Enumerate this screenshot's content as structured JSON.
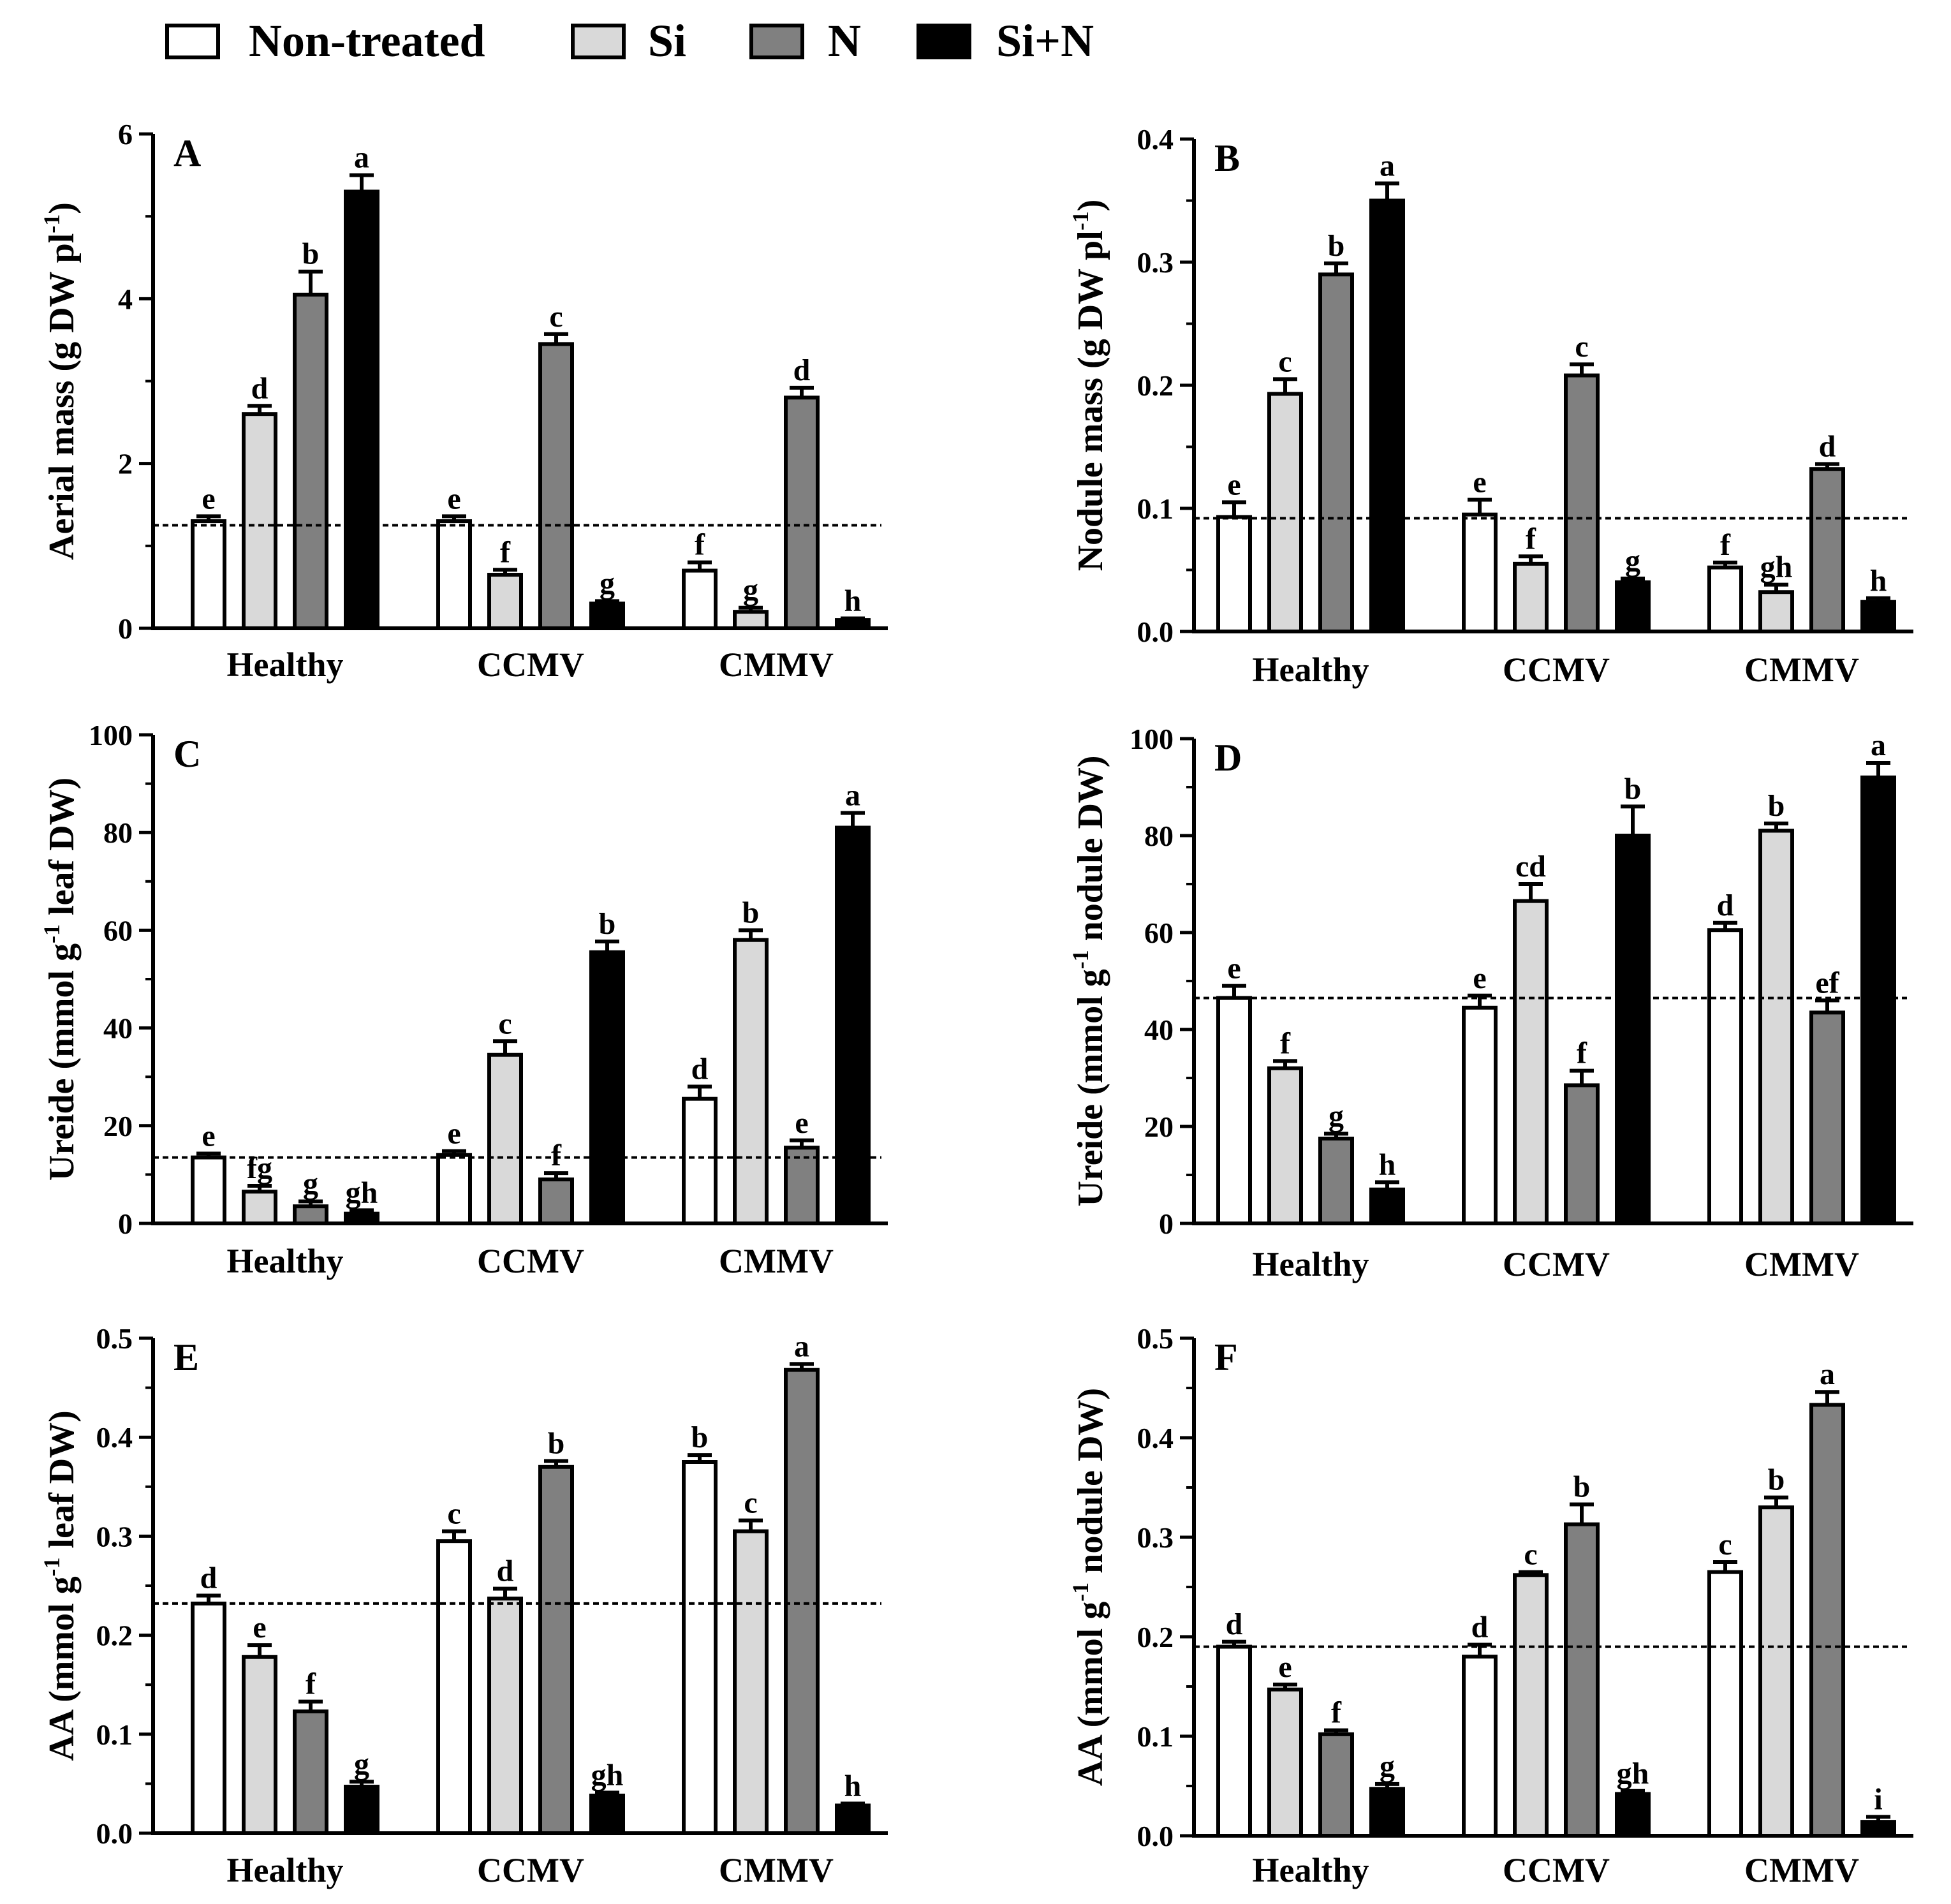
{
  "legend": {
    "items": [
      {
        "label": "Non-treated",
        "color": "#ffffff"
      },
      {
        "label": "Si",
        "color": "#d9d9d9"
      },
      {
        "label": "N",
        "color": "#808080"
      },
      {
        "label": "Si+N",
        "color": "#000000"
      }
    ]
  },
  "chart_data": [
    {
      "type": "bar",
      "panel": "A",
      "ylabel": "Aerial mass (g DW pl-1)",
      "ylabel_parts": [
        "Aerial mass (g DW pl",
        "-1",
        ")"
      ],
      "ylim": [
        0,
        6
      ],
      "yticks": [
        0,
        2,
        4,
        6
      ],
      "ytick_labels": [
        "0",
        "2",
        "4",
        "6"
      ],
      "categories": [
        "Healthy",
        "CCMV",
        "CMMV"
      ],
      "reference_line": 1.25,
      "series": [
        {
          "name": "Non-treated",
          "values": [
            1.3,
            1.3,
            0.7
          ],
          "errors": [
            0.06,
            0.06,
            0.1
          ],
          "letters": [
            "e",
            "e",
            "f"
          ]
        },
        {
          "name": "Si",
          "values": [
            2.6,
            0.65,
            0.2
          ],
          "errors": [
            0.1,
            0.06,
            0.05
          ],
          "letters": [
            "d",
            "f",
            "g"
          ]
        },
        {
          "name": "N",
          "values": [
            4.05,
            3.45,
            2.8
          ],
          "errors": [
            0.28,
            0.12,
            0.12
          ],
          "letters": [
            "b",
            "c",
            "d"
          ]
        },
        {
          "name": "Si+N",
          "values": [
            5.3,
            0.3,
            0.1
          ],
          "errors": [
            0.2,
            0.03,
            0.02
          ],
          "letters": [
            "a",
            "g",
            "h"
          ]
        }
      ]
    },
    {
      "type": "bar",
      "panel": "B",
      "ylabel": "Nodule mass (g DW pl-1)",
      "ylabel_parts": [
        "Nodule mass (g DW pl",
        "-1",
        ")"
      ],
      "ylim": [
        0,
        0.4
      ],
      "yticks": [
        0,
        0.1,
        0.2,
        0.3,
        0.4
      ],
      "ytick_labels": [
        "0.0",
        "0.1",
        "0.2",
        "0.3",
        "0.4"
      ],
      "categories": [
        "Healthy",
        "CCMV",
        "CMMV"
      ],
      "reference_line": 0.092,
      "series": [
        {
          "name": "Non-treated",
          "values": [
            0.093,
            0.095,
            0.052
          ],
          "errors": [
            0.012,
            0.012,
            0.004
          ],
          "letters": [
            "e",
            "e",
            "f"
          ]
        },
        {
          "name": "Si",
          "values": [
            0.193,
            0.055,
            0.032
          ],
          "errors": [
            0.012,
            0.006,
            0.006
          ],
          "letters": [
            "c",
            "f",
            "gh"
          ]
        },
        {
          "name": "N",
          "values": [
            0.29,
            0.208,
            0.132
          ],
          "errors": [
            0.009,
            0.009,
            0.004
          ],
          "letters": [
            "b",
            "c",
            "d"
          ]
        },
        {
          "name": "Si+N",
          "values": [
            0.35,
            0.04,
            0.024
          ],
          "errors": [
            0.014,
            0.003,
            0.003
          ],
          "letters": [
            "a",
            "g",
            "h"
          ]
        }
      ]
    },
    {
      "type": "bar",
      "panel": "C",
      "ylabel": "Ureide (mmol g-1 leaf DW)",
      "ylabel_parts": [
        "Ureide (mmol g",
        "-1",
        " leaf DW)"
      ],
      "ylim": [
        0,
        100
      ],
      "yticks": [
        0,
        20,
        40,
        60,
        80,
        100
      ],
      "ytick_labels": [
        "0",
        "20",
        "40",
        "60",
        "80",
        "100"
      ],
      "categories": [
        "Healthy",
        "CCMV",
        "CMMV"
      ],
      "reference_line": 13.5,
      "series": [
        {
          "name": "Non-treated",
          "values": [
            13.5,
            14,
            25.5
          ],
          "errors": [
            0.8,
            0.8,
            2.5
          ],
          "letters": [
            "e",
            "e",
            "d"
          ]
        },
        {
          "name": "Si",
          "values": [
            6.5,
            34.5,
            58
          ],
          "errors": [
            1.2,
            2.8,
            2.0
          ],
          "letters": [
            "fg",
            "c",
            "b"
          ]
        },
        {
          "name": "N",
          "values": [
            3.5,
            9,
            15.5
          ],
          "errors": [
            1.0,
            1.3,
            1.5
          ],
          "letters": [
            "g",
            "f",
            "e"
          ]
        },
        {
          "name": "Si+N",
          "values": [
            2,
            55.5,
            81
          ],
          "errors": [
            0.7,
            2.2,
            3.0
          ],
          "letters": [
            "gh",
            "b",
            "a"
          ]
        }
      ]
    },
    {
      "type": "bar",
      "panel": "D",
      "ylabel": "Ureide (mmol g-1 nodule DW)",
      "ylabel_parts": [
        "Ureide (mmol g",
        "-1",
        " nodule DW)"
      ],
      "ylim": [
        0,
        100
      ],
      "yticks": [
        0,
        20,
        40,
        60,
        80,
        100
      ],
      "ytick_labels": [
        "0",
        "20",
        "40",
        "60",
        "80",
        "100"
      ],
      "categories": [
        "Healthy",
        "CCMV",
        "CMMV"
      ],
      "reference_line": 46.5,
      "series": [
        {
          "name": "Non-treated",
          "values": [
            46.5,
            44.5,
            60.5
          ],
          "errors": [
            2.5,
            2.5,
            1.5
          ],
          "letters": [
            "e",
            "e",
            "d"
          ]
        },
        {
          "name": "Si",
          "values": [
            32,
            66.5,
            81
          ],
          "errors": [
            1.5,
            3.5,
            1.5
          ],
          "letters": [
            "f",
            "cd",
            "b"
          ]
        },
        {
          "name": "N",
          "values": [
            17.5,
            28.5,
            43.5
          ],
          "errors": [
            1.0,
            3.0,
            2.5
          ],
          "letters": [
            "g",
            "f",
            "ef"
          ]
        },
        {
          "name": "Si+N",
          "values": [
            7,
            80,
            92
          ],
          "errors": [
            1.5,
            6.0,
            3.0
          ],
          "letters": [
            "h",
            "b",
            "a"
          ]
        }
      ]
    },
    {
      "type": "bar",
      "panel": "E",
      "ylabel": "AA (mmol g-1 leaf DW)",
      "ylabel_parts": [
        "AA (mmol g",
        "-1",
        " leaf DW)"
      ],
      "ylim": [
        0,
        0.5
      ],
      "yticks": [
        0,
        0.1,
        0.2,
        0.3,
        0.4,
        0.5
      ],
      "ytick_labels": [
        "0.0",
        "0.1",
        "0.2",
        "0.3",
        "0.4",
        "0.5"
      ],
      "categories": [
        "Healthy",
        "CCMV",
        "CMMV"
      ],
      "reference_line": 0.232,
      "series": [
        {
          "name": "Non-treated",
          "values": [
            0.232,
            0.295,
            0.375
          ],
          "errors": [
            0.008,
            0.01,
            0.007
          ],
          "letters": [
            "d",
            "c",
            "b"
          ]
        },
        {
          "name": "Si",
          "values": [
            0.178,
            0.237,
            0.305
          ],
          "errors": [
            0.012,
            0.01,
            0.011
          ],
          "letters": [
            "e",
            "d",
            "c"
          ]
        },
        {
          "name": "N",
          "values": [
            0.123,
            0.37,
            0.468
          ],
          "errors": [
            0.01,
            0.006,
            0.006
          ],
          "letters": [
            "f",
            "b",
            "a"
          ]
        },
        {
          "name": "Si+N",
          "values": [
            0.047,
            0.038,
            0.028
          ],
          "errors": [
            0.005,
            0.003,
            0.002
          ],
          "letters": [
            "g",
            "gh",
            "h"
          ]
        }
      ]
    },
    {
      "type": "bar",
      "panel": "F",
      "ylabel": "AA (mmol g-1 nodule DW)",
      "ylabel_parts": [
        "AA (mmol g",
        "-1",
        " nodule DW)"
      ],
      "ylim": [
        0,
        0.5
      ],
      "yticks": [
        0,
        0.1,
        0.2,
        0.3,
        0.4,
        0.5
      ],
      "ytick_labels": [
        "0.0",
        "0.1",
        "0.2",
        "0.3",
        "0.4",
        "0.5"
      ],
      "categories": [
        "Healthy",
        "CCMV",
        "CMMV"
      ],
      "reference_line": 0.19,
      "series": [
        {
          "name": "Non-treated",
          "values": [
            0.19,
            0.18,
            0.265
          ],
          "errors": [
            0.005,
            0.012,
            0.01
          ],
          "letters": [
            "d",
            "d",
            "c"
          ]
        },
        {
          "name": "Si",
          "values": [
            0.147,
            0.262,
            0.33
          ],
          "errors": [
            0.005,
            0.003,
            0.01
          ],
          "letters": [
            "e",
            "c",
            "b"
          ]
        },
        {
          "name": "N",
          "values": [
            0.102,
            0.313,
            0.433
          ],
          "errors": [
            0.004,
            0.02,
            0.013
          ],
          "letters": [
            "f",
            "b",
            "a"
          ]
        },
        {
          "name": "Si+N",
          "values": [
            0.047,
            0.042,
            0.014
          ],
          "errors": [
            0.005,
            0.003,
            0.005
          ],
          "letters": [
            "g",
            "gh",
            "i"
          ]
        }
      ]
    }
  ]
}
